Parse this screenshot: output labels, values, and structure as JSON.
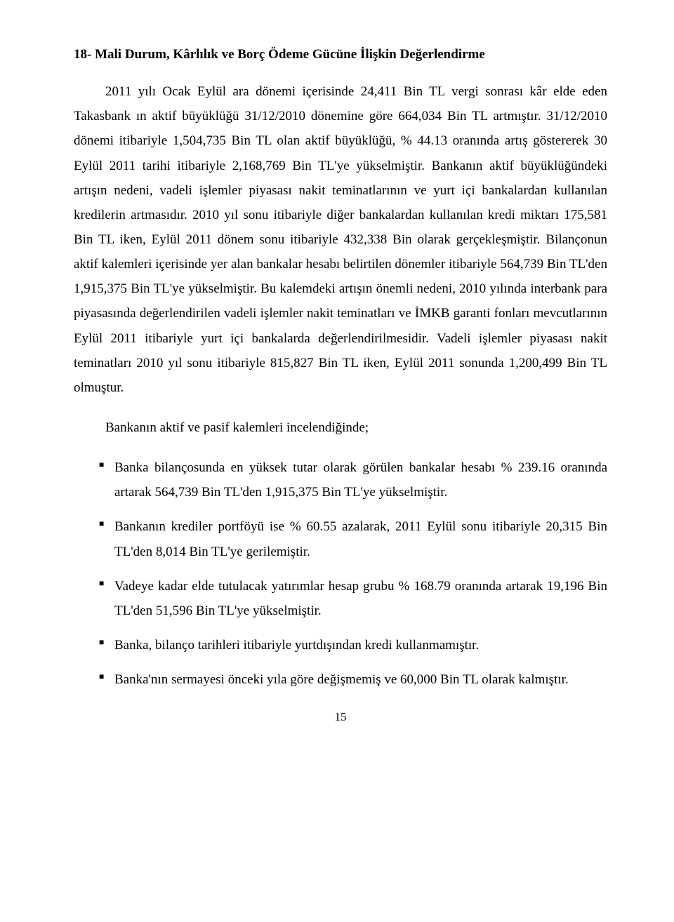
{
  "heading": "18- Mali Durum, Kârlılık ve Borç Ödeme Gücüne İlişkin Değerlendirme",
  "paragraph_main": "2011 yılı Ocak Eylül ara dönemi içerisinde 24,411 Bin TL vergi sonrası kâr elde eden Takasbank ın aktif büyüklüğü 31/12/2010 dönemine göre 664,034 Bin TL artmıştır. 31/12/2010 dönemi itibariyle 1,504,735 Bin TL olan aktif büyüklüğü, % 44.13 oranında artış göstererek 30 Eylül 2011 tarihi itibariyle 2,168,769 Bin TL'ye yükselmiştir. Bankanın aktif büyüklüğündeki artışın nedeni, vadeli işlemler piyasası nakit teminatlarının ve yurt içi bankalardan kullanılan kredilerin artmasıdır. 2010 yıl sonu itibariyle diğer bankalardan kullanılan kredi miktarı 175,581 Bin TL iken, Eylül 2011 dönem sonu itibariyle 432,338 Bin olarak gerçekleşmiştir. Bilançonun aktif kalemleri içerisinde yer alan bankalar hesabı belirtilen dönemler itibariyle 564,739 Bin TL'den 1,915,375 Bin TL'ye yükselmiştir. Bu kalemdeki artışın önemli nedeni, 2010 yılında interbank para piyasasında değerlendirilen vadeli işlemler nakit teminatları ve İMKB garanti fonları mevcutlarının Eylül 2011 itibariyle yurt içi bankalarda değerlendirilmesidir. Vadeli işlemler piyasası nakit teminatları 2010 yıl sonu itibariyle 815,827 Bin TL iken, Eylül 2011 sonunda 1,200,499 Bin TL olmuştur.",
  "paragraph_sub": "Bankanın aktif ve pasif kalemleri incelendiğinde;",
  "bullets": [
    "Banka bilançosunda en yüksek tutar olarak görülen bankalar hesabı % 239.16 oranında artarak 564,739 Bin TL'den 1,915,375 Bin TL'ye yükselmiştir.",
    "Bankanın krediler portföyü ise % 60.55 azalarak, 2011 Eylül sonu itibariyle 20,315 Bin TL'den 8,014 Bin TL'ye gerilemiştir.",
    "Vadeye kadar elde tutulacak yatırımlar hesap grubu % 168.79 oranında artarak 19,196 Bin TL'den 51,596 Bin TL'ye yükselmiştir.",
    "Banka, bilanço tarihleri itibariyle yurtdışından kredi kullanmamıştır.",
    "Banka'nın sermayesi önceki yıla göre değişmemiş ve 60,000 Bin TL olarak kalmıştır."
  ],
  "page_number": "15",
  "colors": {
    "text": "#000000",
    "background": "#ffffff"
  },
  "typography": {
    "font_family": "Times New Roman",
    "body_fontsize": 19,
    "line_height": 1.85
  }
}
